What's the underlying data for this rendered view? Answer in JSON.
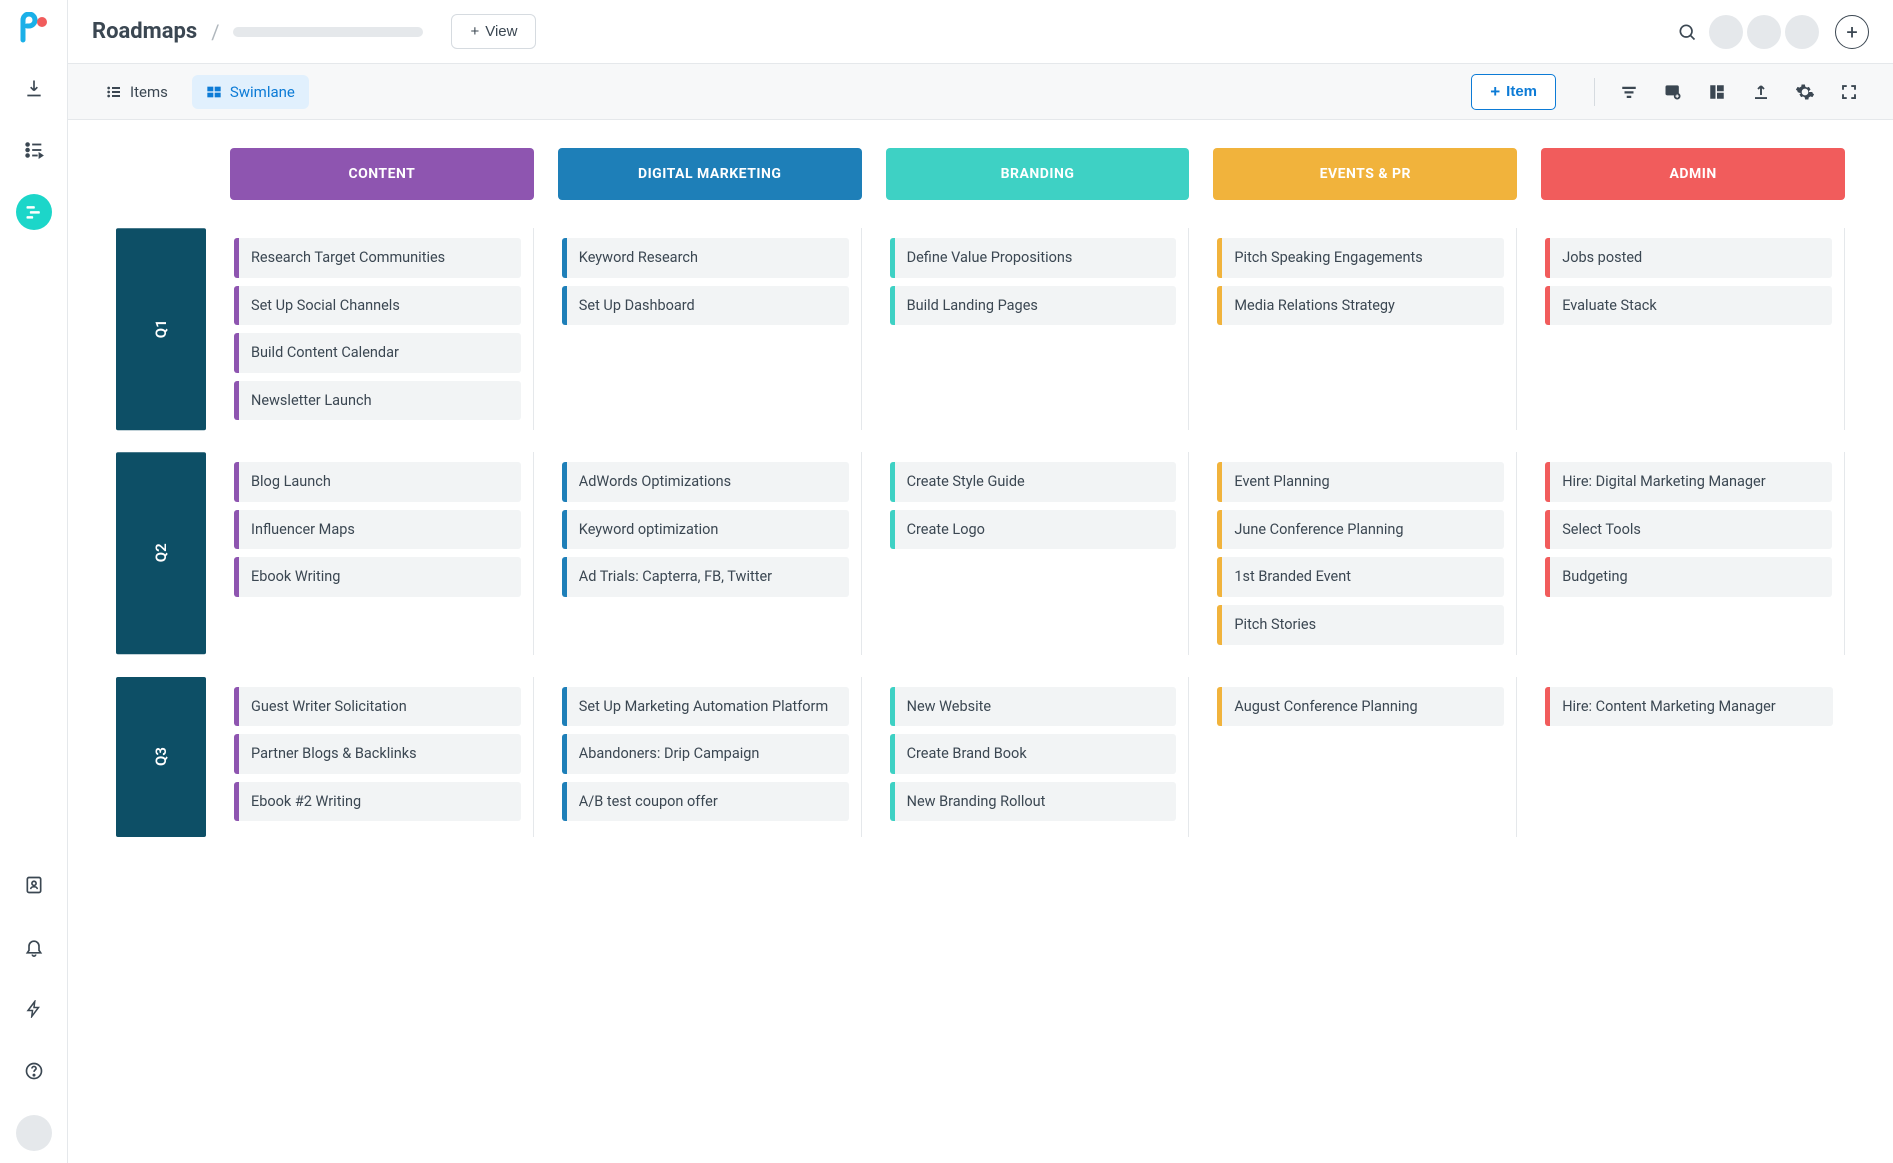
{
  "header": {
    "title": "Roadmaps",
    "view_button": "View",
    "item_button": "Item"
  },
  "tabs": {
    "items": "Items",
    "swimlane": "Swimlane"
  },
  "colors": {
    "content": "#8e55b0",
    "digital_marketing": "#1e7fb8",
    "branding": "#3ed1c4",
    "events_pr": "#f1b33c",
    "admin": "#f15c5c",
    "row_header": "#0d4f66",
    "accent_blue": "#0c7bd6",
    "teal": "#1cd6c9"
  },
  "columns": [
    {
      "key": "content",
      "label": "CONTENT"
    },
    {
      "key": "digital_marketing",
      "label": "DIGITAL MARKETING"
    },
    {
      "key": "branding",
      "label": "BRANDING"
    },
    {
      "key": "events_pr",
      "label": "EVENTS & PR"
    },
    {
      "key": "admin",
      "label": "ADMIN"
    }
  ],
  "rows": [
    {
      "label": "Q1",
      "cells": {
        "content": [
          "Research Target Communities",
          "Set Up Social Channels",
          "Build Content Calendar",
          "Newsletter Launch"
        ],
        "digital_marketing": [
          "Keyword Research",
          "Set Up Dashboard"
        ],
        "branding": [
          "Define Value Propositions",
          "Build Landing Pages"
        ],
        "events_pr": [
          "Pitch Speaking Engagements",
          "Media Relations Strategy"
        ],
        "admin": [
          "Jobs posted",
          "Evaluate Stack"
        ]
      }
    },
    {
      "label": "Q2",
      "cells": {
        "content": [
          "Blog Launch",
          "Influencer Maps",
          "Ebook Writing"
        ],
        "digital_marketing": [
          "AdWords Optimizations",
          "Keyword optimization",
          "Ad Trials: Capterra, FB, Twitter"
        ],
        "branding": [
          "Create Style Guide",
          "Create Logo"
        ],
        "events_pr": [
          "Event Planning",
          "June Conference Planning",
          "1st Branded Event",
          "Pitch Stories"
        ],
        "admin": [
          "Hire: Digital Marketing Manager",
          "Select Tools",
          "Budgeting"
        ]
      }
    },
    {
      "label": "Q3",
      "cells": {
        "content": [
          "Guest Writer Solicitation",
          "Partner Blogs & Backlinks",
          "Ebook #2 Writing"
        ],
        "digital_marketing": [
          "Set Up Marketing Automation Platform",
          "Abandoners: Drip Campaign",
          "A/B test coupon offer"
        ],
        "branding": [
          "New Website",
          "Create Brand Book",
          "New Branding Rollout"
        ],
        "events_pr": [
          "August Conference Planning"
        ],
        "admin": [
          "Hire: Content Marketing Manager"
        ]
      }
    }
  ]
}
